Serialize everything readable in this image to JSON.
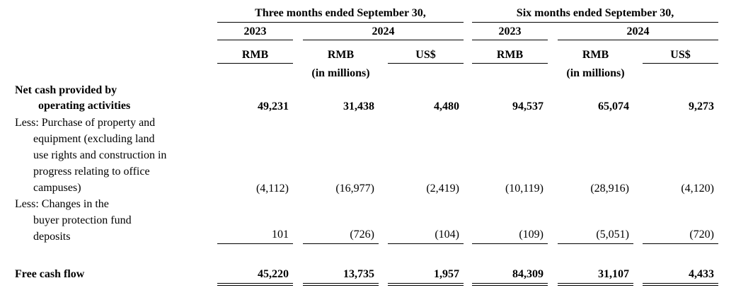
{
  "header": {
    "three_months": "Three months ended September 30,",
    "six_months": "Six months ended September 30,",
    "year_2023": "2023",
    "year_2024": "2024",
    "rmb": "RMB",
    "usd": "US$",
    "in_millions": "(in millions)"
  },
  "rows": {
    "net_cash": {
      "label_line1": "Net cash provided by",
      "label_line2": "operating activities",
      "values": [
        "49,231",
        "31,438",
        "4,480",
        "94,537",
        "65,074",
        "9,273"
      ]
    },
    "capex": {
      "label_lines": [
        "Less: Purchase of property and",
        "equipment (excluding land",
        "use rights and construction in",
        "progress relating to office",
        "campuses)"
      ],
      "values": [
        "(4,112)",
        "(16,977)",
        "(2,419)",
        "(10,119)",
        "(28,916)",
        "(4,120)"
      ]
    },
    "buyer_protection": {
      "label_lines": [
        "Less: Changes in the",
        "buyer protection fund",
        "deposits"
      ],
      "values": [
        "101",
        "(726)",
        "(104)",
        "(109)",
        "(5,051)",
        "(720)"
      ]
    },
    "free_cash_flow": {
      "label": "Free cash flow",
      "values": [
        "45,220",
        "13,735",
        "1,957",
        "84,309",
        "31,107",
        "4,433"
      ]
    }
  }
}
